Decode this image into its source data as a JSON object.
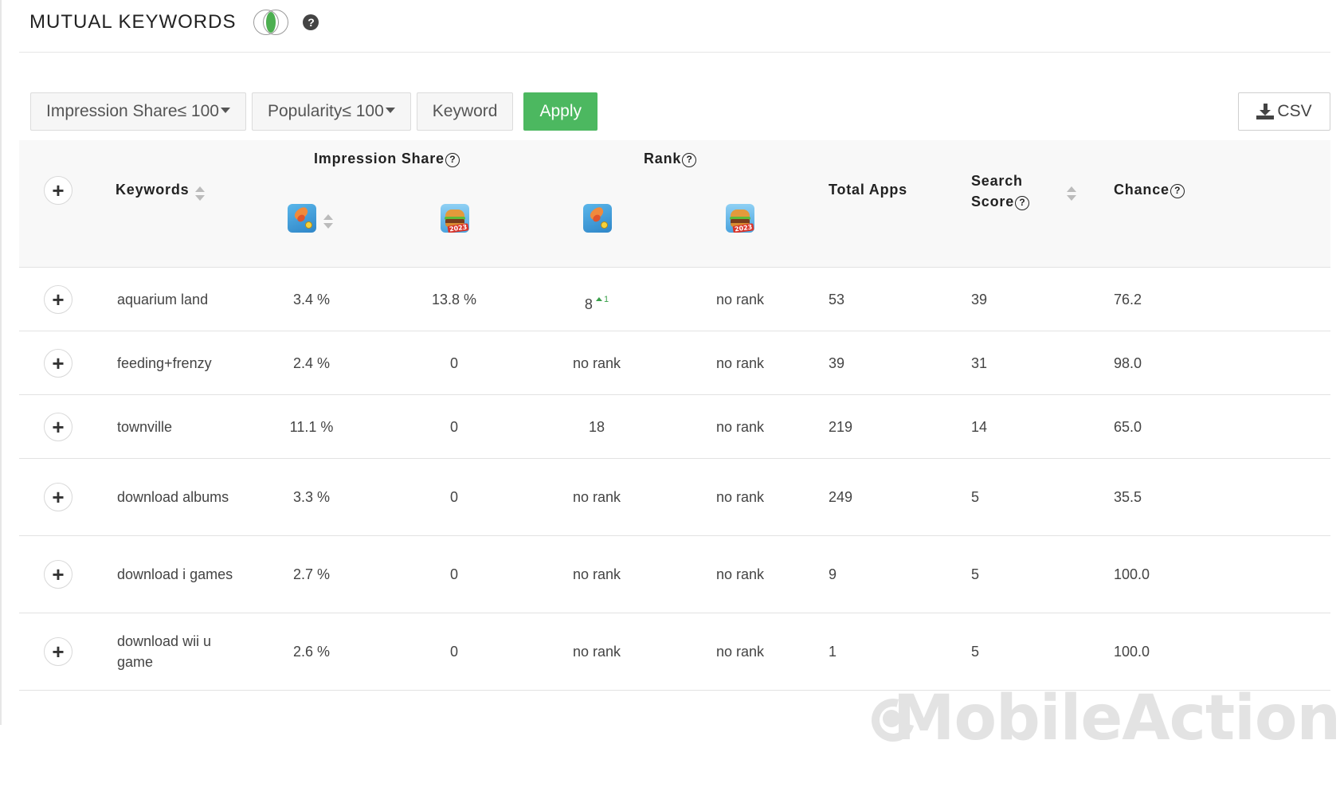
{
  "header": {
    "title": "MUTUAL KEYWORDS",
    "help": "?"
  },
  "filters": {
    "impression_share": "Impression Share≤ 100",
    "popularity": "Popularity≤ 100",
    "keyword": "Keyword",
    "apply": "Apply",
    "csv": "CSV"
  },
  "colors": {
    "accent": "#4cb860",
    "header_bg": "#f8f8f8",
    "divider": "#e2e2e2"
  },
  "table": {
    "columns": {
      "keywords": "Keywords",
      "impression_share": "Impression Share",
      "rank": "Rank",
      "total_apps": "Total Apps",
      "search_score_1": "Search",
      "search_score_2": "Score",
      "chance": "Chance"
    },
    "apps": [
      {
        "icon": "fish-game-app-icon"
      },
      {
        "icon": "burger-cooking-app-icon",
        "badge": "2023"
      }
    ],
    "rows": [
      {
        "keyword": "aquarium land",
        "is_a": "3.4 %",
        "is_b": "13.8 %",
        "rank_a": "8",
        "rank_a_change": "1",
        "rank_b": "no rank",
        "total_apps": "53",
        "search_score": "39",
        "chance": "76.2"
      },
      {
        "keyword": "feeding+frenzy",
        "is_a": "2.4 %",
        "is_b": "0",
        "rank_a": "no rank",
        "rank_a_change": "",
        "rank_b": "no rank",
        "total_apps": "39",
        "search_score": "31",
        "chance": "98.0"
      },
      {
        "keyword": "townville",
        "is_a": "11.1 %",
        "is_b": "0",
        "rank_a": "18",
        "rank_a_change": "",
        "rank_b": "no rank",
        "total_apps": "219",
        "search_score": "14",
        "chance": "65.0"
      },
      {
        "keyword": "download albums",
        "is_a": "3.3 %",
        "is_b": "0",
        "rank_a": "no rank",
        "rank_a_change": "",
        "rank_b": "no rank",
        "total_apps": "249",
        "search_score": "5",
        "chance": "35.5"
      },
      {
        "keyword": "download i games",
        "is_a": "2.7 %",
        "is_b": "0",
        "rank_a": "no rank",
        "rank_a_change": "",
        "rank_b": "no rank",
        "total_apps": "9",
        "search_score": "5",
        "chance": "100.0"
      },
      {
        "keyword": "download wii u game",
        "is_a": "2.6 %",
        "is_b": "0",
        "rank_a": "no rank",
        "rank_a_change": "",
        "rank_b": "no rank",
        "total_apps": "1",
        "search_score": "5",
        "chance": "100.0"
      }
    ]
  },
  "watermark": "MobileAction"
}
